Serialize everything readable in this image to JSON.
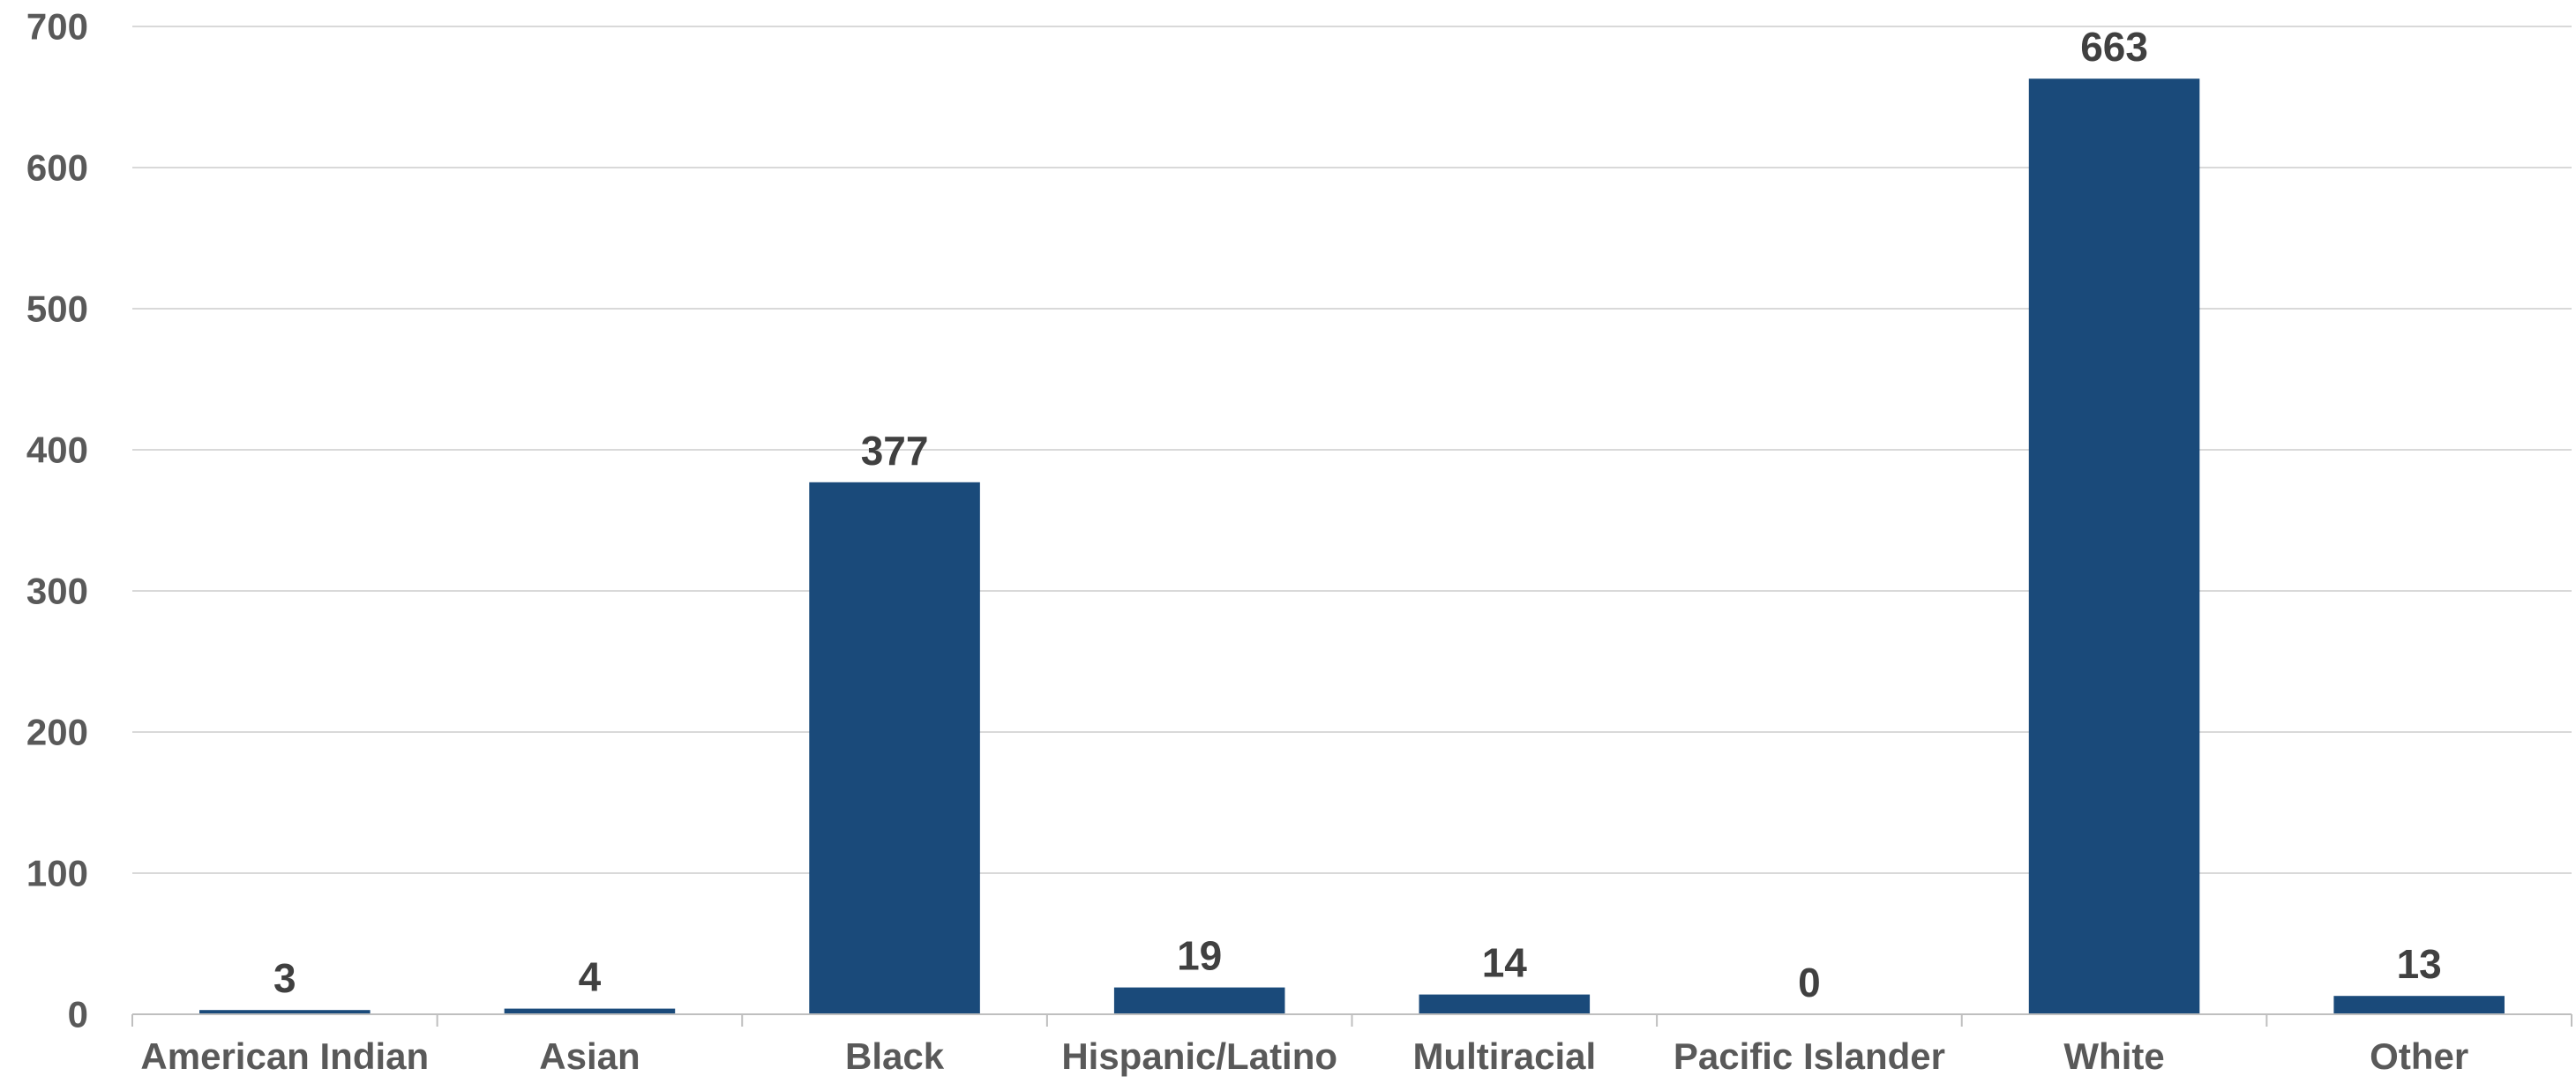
{
  "chart_data": {
    "type": "bar",
    "categories": [
      "American Indian",
      "Asian",
      "Black",
      "Hispanic/Latino",
      "Multiracial",
      "Pacific Islander",
      "White",
      "Other"
    ],
    "values": [
      3,
      4,
      377,
      19,
      14,
      0,
      663,
      13
    ],
    "data_labels": [
      "3",
      "4",
      "377",
      "19",
      "14",
      "0",
      "663",
      "13"
    ],
    "title": "",
    "xlabel": "",
    "ylabel": "",
    "ylim": [
      0,
      700
    ],
    "yticks": [
      0,
      100,
      200,
      300,
      400,
      500,
      600,
      700
    ],
    "ytick_labels": [
      "0",
      "100",
      "200",
      "300",
      "400",
      "500",
      "600",
      "700"
    ],
    "grid": true,
    "legend": "none",
    "bar_color": "#1a4a7a"
  }
}
